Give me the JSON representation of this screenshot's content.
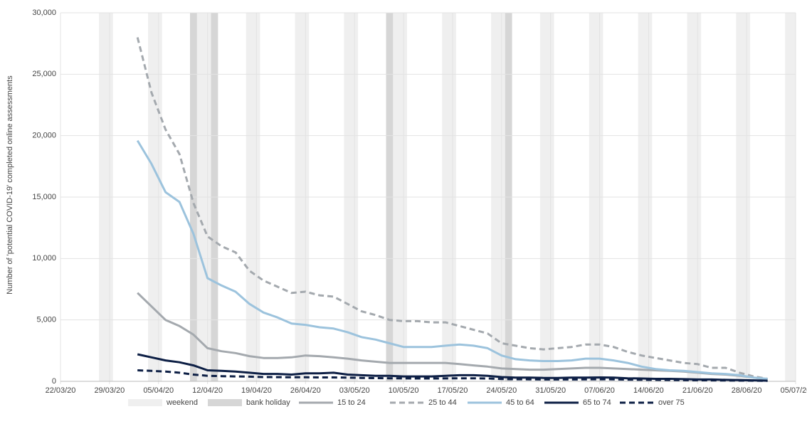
{
  "chart_data": {
    "type": "line",
    "y_label": "Number of 'potential COVID-19' completed online assessments",
    "xlim": [
      "22/03/20",
      "05/07/20"
    ],
    "xticks": [
      "22/03/20",
      "29/03/20",
      "05/04/20",
      "12/04/20",
      "19/04/20",
      "26/04/20",
      "03/05/20",
      "10/05/20",
      "17/05/20",
      "24/05/20",
      "31/05/20",
      "07/06/20",
      "14/06/20",
      "21/06/20",
      "28/06/20",
      "05/07/20"
    ],
    "ylim": [
      0,
      30000
    ],
    "yticks": [
      0,
      {
        "value": 5000,
        "label": "5,000"
      },
      {
        "value": 10000,
        "label": "10,000"
      },
      {
        "value": 15000,
        "label": "15,000"
      },
      {
        "value": 20000,
        "label": "20,000"
      },
      {
        "value": 25000,
        "label": "25,000"
      },
      {
        "value": 30000,
        "label": "30,000"
      }
    ],
    "grid": true,
    "legend": "bottom",
    "shading": [
      {
        "name": "weekend",
        "color": "#efefef",
        "days": 2,
        "dates": [
          "28/03/20",
          "04/04/20",
          "11/04/20",
          "18/04/20",
          "25/04/20",
          "02/05/20",
          "09/05/20",
          "16/05/20",
          "23/05/20",
          "30/05/20",
          "06/06/20",
          "13/06/20",
          "20/06/20",
          "27/06/20",
          "04/07/20"
        ]
      },
      {
        "name": "bank holiday",
        "color": "#d6d6d6",
        "days": 1,
        "dates": [
          "10/04/20",
          "13/04/20",
          "08/05/20",
          "25/05/20"
        ]
      }
    ],
    "x": [
      "02/04/20",
      "04/04/20",
      "06/04/20",
      "08/04/20",
      "10/04/20",
      "12/04/20",
      "14/04/20",
      "16/04/20",
      "18/04/20",
      "20/04/20",
      "22/04/20",
      "24/04/20",
      "26/04/20",
      "28/04/20",
      "30/04/20",
      "02/05/20",
      "04/05/20",
      "06/05/20",
      "08/05/20",
      "10/05/20",
      "12/05/20",
      "14/05/20",
      "16/05/20",
      "18/05/20",
      "20/05/20",
      "22/05/20",
      "24/05/20",
      "26/05/20",
      "28/05/20",
      "30/05/20",
      "01/06/20",
      "03/06/20",
      "05/06/20",
      "07/06/20",
      "09/06/20",
      "11/06/20",
      "13/06/20",
      "15/06/20",
      "17/06/20",
      "19/06/20",
      "21/06/20",
      "23/06/20",
      "25/06/20",
      "27/06/20",
      "29/06/20",
      "01/07/20"
    ],
    "series": [
      {
        "name": "15 to 24",
        "color": "#a4a9ae",
        "dashed": false,
        "values": [
          7200,
          6100,
          5000,
          4500,
          3800,
          2700,
          2450,
          2300,
          2050,
          1900,
          1900,
          1950,
          2100,
          2050,
          1950,
          1850,
          1700,
          1600,
          1500,
          1500,
          1500,
          1500,
          1500,
          1400,
          1300,
          1200,
          1050,
          1000,
          950,
          950,
          1000,
          1050,
          1100,
          1100,
          1050,
          1000,
          950,
          900,
          850,
          800,
          700,
          600,
          550,
          450,
          300,
          150
        ]
      },
      {
        "name": "25 to 44",
        "color": "#a4a9ae",
        "dashed": true,
        "values": [
          28000,
          23500,
          20500,
          18500,
          14500,
          11800,
          11000,
          10500,
          9000,
          8200,
          7700,
          7200,
          7300,
          7000,
          6900,
          6300,
          5700,
          5400,
          5000,
          4900,
          4900,
          4800,
          4800,
          4500,
          4200,
          3900,
          3100,
          2900,
          2700,
          2600,
          2700,
          2800,
          3000,
          3000,
          2800,
          2400,
          2100,
          1900,
          1700,
          1500,
          1400,
          1100,
          1100,
          700,
          400,
          200
        ]
      },
      {
        "name": "45 to 64",
        "color": "#9cc3dd",
        "dashed": false,
        "values": [
          19600,
          17700,
          15400,
          14600,
          12000,
          8400,
          7800,
          7300,
          6300,
          5600,
          5200,
          4700,
          4600,
          4400,
          4300,
          4000,
          3600,
          3400,
          3100,
          2800,
          2800,
          2800,
          2900,
          3000,
          2900,
          2700,
          2100,
          1800,
          1700,
          1650,
          1650,
          1700,
          1850,
          1850,
          1700,
          1500,
          1200,
          1000,
          900,
          850,
          750,
          650,
          600,
          500,
          300,
          200
        ]
      },
      {
        "name": "65 to 74",
        "color": "#0d1f45",
        "dashed": false,
        "values": [
          2200,
          1950,
          1700,
          1550,
          1300,
          900,
          850,
          800,
          700,
          600,
          600,
          550,
          650,
          650,
          700,
          550,
          500,
          450,
          450,
          400,
          400,
          400,
          450,
          500,
          500,
          450,
          350,
          300,
          300,
          280,
          280,
          300,
          300,
          320,
          300,
          250,
          230,
          200,
          200,
          180,
          150,
          150,
          120,
          100,
          80,
          50
        ]
      },
      {
        "name": "over 75",
        "color": "#0d1f45",
        "dashed": true,
        "values": [
          900,
          850,
          800,
          700,
          550,
          450,
          420,
          400,
          380,
          350,
          340,
          330,
          330,
          320,
          320,
          300,
          280,
          260,
          250,
          240,
          230,
          230,
          240,
          250,
          250,
          230,
          190,
          170,
          160,
          150,
          150,
          150,
          160,
          170,
          160,
          140,
          130,
          120,
          110,
          100,
          90,
          80,
          70,
          60,
          50,
          40
        ]
      }
    ]
  }
}
